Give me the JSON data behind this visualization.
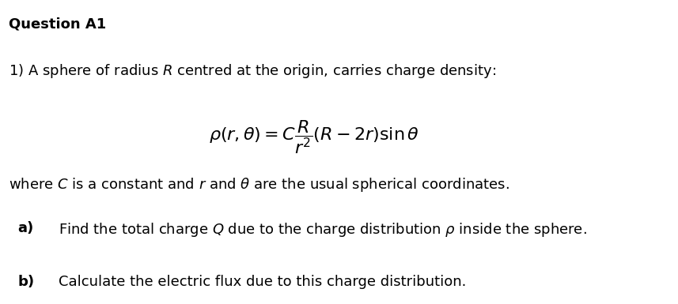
{
  "background_color": "#ffffff",
  "title": "Question A1",
  "line1": "1) A sphere of radius $R$ centred at the origin, carries charge density:",
  "formula": "$\\rho(r,\\theta) = C\\dfrac{R}{r^2}(R - 2r)\\sin\\theta$",
  "line2": "where $C$ is a constant and $r$ and $\\theta$ are the usual spherical coordinates.",
  "part_a_label": "a)",
  "part_a_text": "Find the total charge $Q$ due to the charge distribution $\\rho$ inside the sphere.",
  "part_b_label": "b)",
  "part_b_text": "Calculate the electric flux due to this charge distribution.",
  "title_fontsize": 13,
  "body_fontsize": 13,
  "formula_fontsize": 16,
  "label_fontsize": 13
}
